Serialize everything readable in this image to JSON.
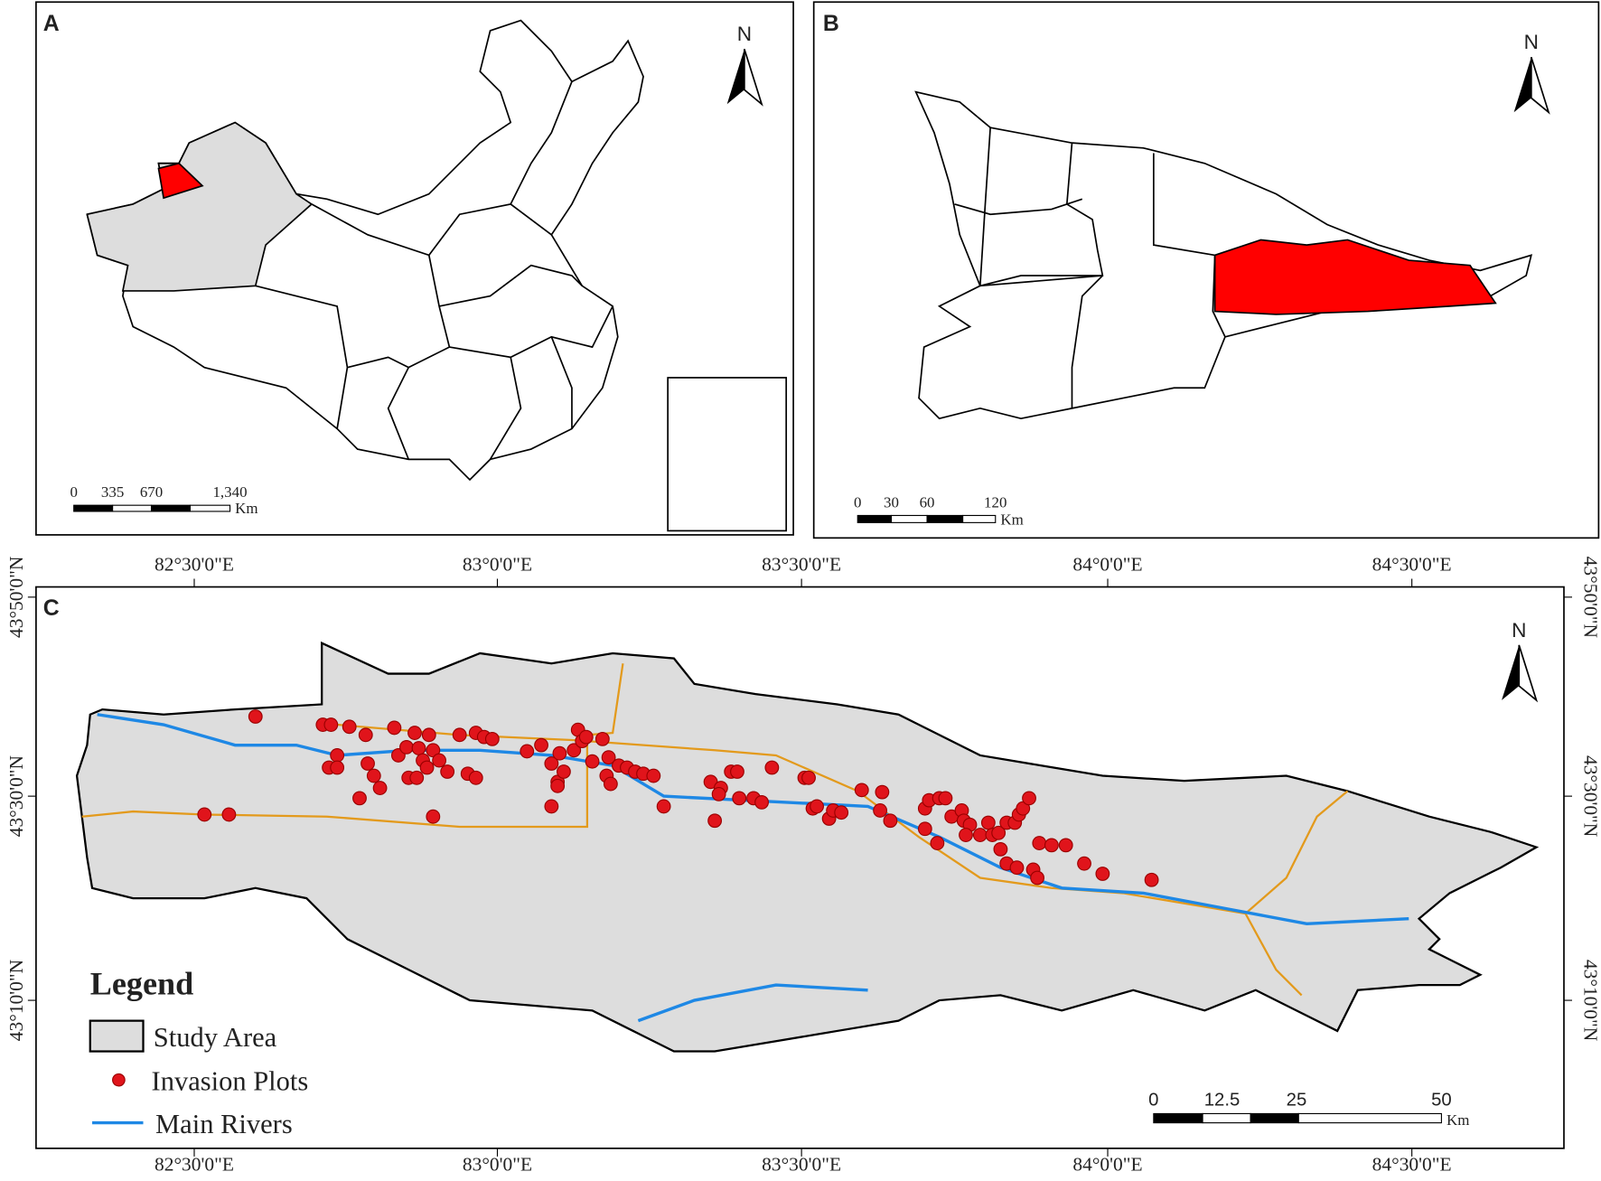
{
  "panels": [
    {
      "label": "A",
      "north": "N",
      "scale_bar": {
        "ticks": [
          "0",
          "335",
          "670",
          "1,340"
        ],
        "unit": "Km"
      }
    },
    {
      "label": "B",
      "north": "N",
      "scale_bar": {
        "ticks": [
          "0",
          "30",
          "60",
          "120"
        ],
        "unit": "Km"
      }
    },
    {
      "label": "C",
      "north": "N",
      "scale_bar": {
        "ticks": [
          "0",
          "12.5",
          "25",
          "50"
        ],
        "unit": "Km"
      },
      "legend": {
        "title": "Legend",
        "items": [
          "Study Area",
          "Invasion Plots",
          "Main Rivers"
        ]
      }
    }
  ],
  "longitudes": [
    "82°30'0\"E",
    "83°0'0\"E",
    "83°30'0\"E",
    "84°0'0\"E",
    "84°30'0\"E"
  ],
  "latitudes": [
    "43°50'0\"N",
    "43°30'0\"N",
    "43°10'0\"N"
  ]
}
